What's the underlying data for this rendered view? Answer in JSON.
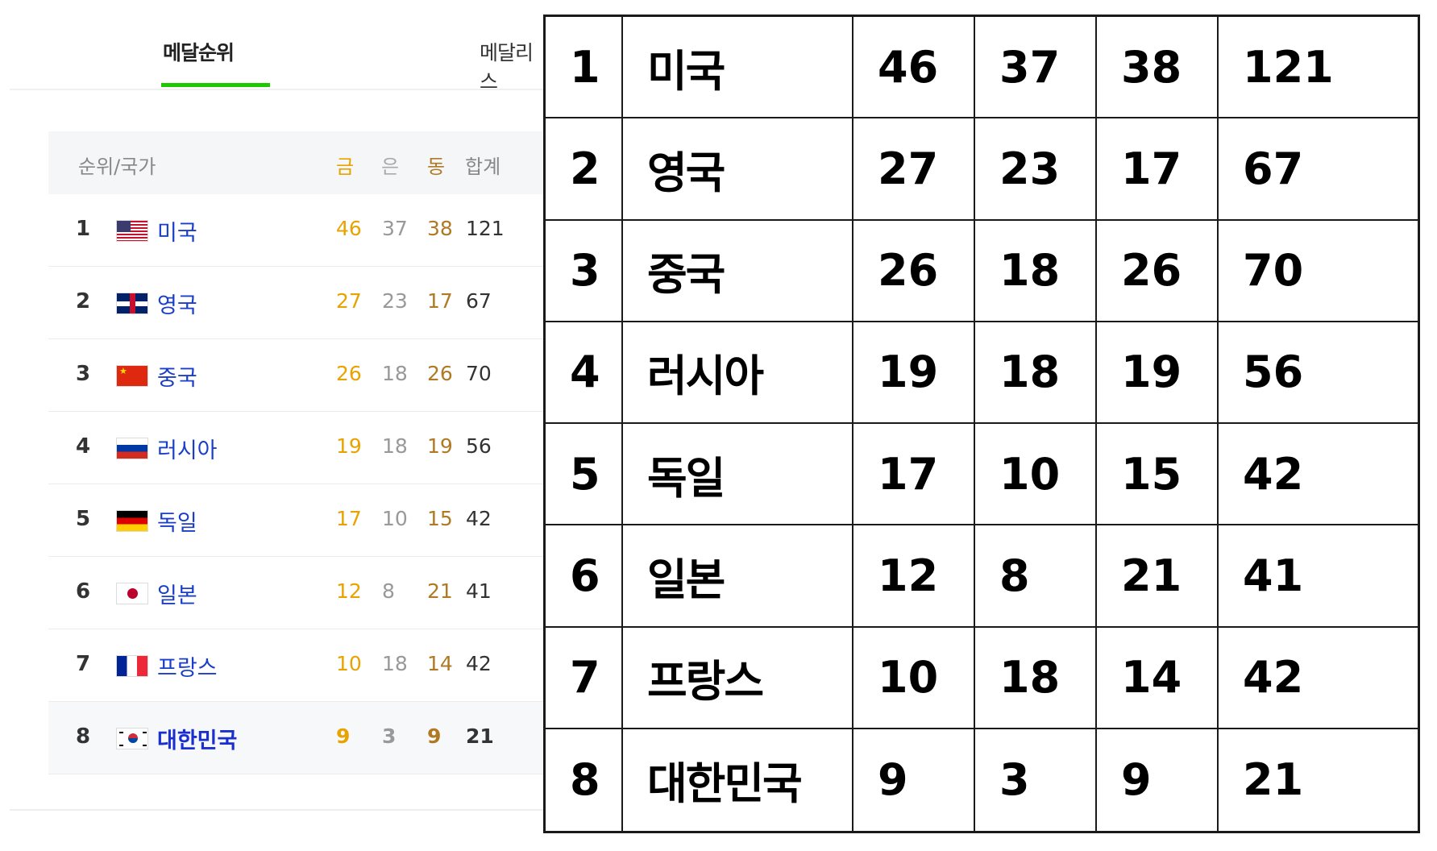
{
  "tabs": [
    {
      "label": "메달순위",
      "active": true
    },
    {
      "label": "메달리스",
      "active": false
    }
  ],
  "table_header": {
    "rank_country": "순위/국가",
    "gold": "금",
    "silver": "은",
    "bronze": "동",
    "total": "합계"
  },
  "rows": [
    {
      "rank": "1",
      "flag": "us-flag-icon",
      "country": "미국",
      "gold": "46",
      "silver": "37",
      "bronze": "38",
      "total": "121",
      "highlight": false
    },
    {
      "rank": "2",
      "flag": "uk-flag-icon",
      "country": "영국",
      "gold": "27",
      "silver": "23",
      "bronze": "17",
      "total": "67",
      "highlight": false
    },
    {
      "rank": "3",
      "flag": "china-flag-icon",
      "country": "중국",
      "gold": "26",
      "silver": "18",
      "bronze": "26",
      "total": "70",
      "highlight": false
    },
    {
      "rank": "4",
      "flag": "russia-flag-icon",
      "country": "러시아",
      "gold": "19",
      "silver": "18",
      "bronze": "19",
      "total": "56",
      "highlight": false
    },
    {
      "rank": "5",
      "flag": "germany-flag-icon",
      "country": "독일",
      "gold": "17",
      "silver": "10",
      "bronze": "15",
      "total": "42",
      "highlight": false
    },
    {
      "rank": "6",
      "flag": "japan-flag-icon",
      "country": "일본",
      "gold": "12",
      "silver": "8",
      "bronze": "21",
      "total": "41",
      "highlight": false
    },
    {
      "rank": "7",
      "flag": "france-flag-icon",
      "country": "프랑스",
      "gold": "10",
      "silver": "18",
      "bronze": "14",
      "total": "42",
      "highlight": false
    },
    {
      "rank": "8",
      "flag": "korea-flag-icon",
      "country": "대한민국",
      "gold": "9",
      "silver": "3",
      "bronze": "9",
      "total": "21",
      "highlight": true
    }
  ],
  "colors": {
    "tab_underline": "#1ec800",
    "gold": "#e8a300",
    "silver": "#999999",
    "bronze": "#b07a25",
    "country_link": "#1a3ec8"
  }
}
